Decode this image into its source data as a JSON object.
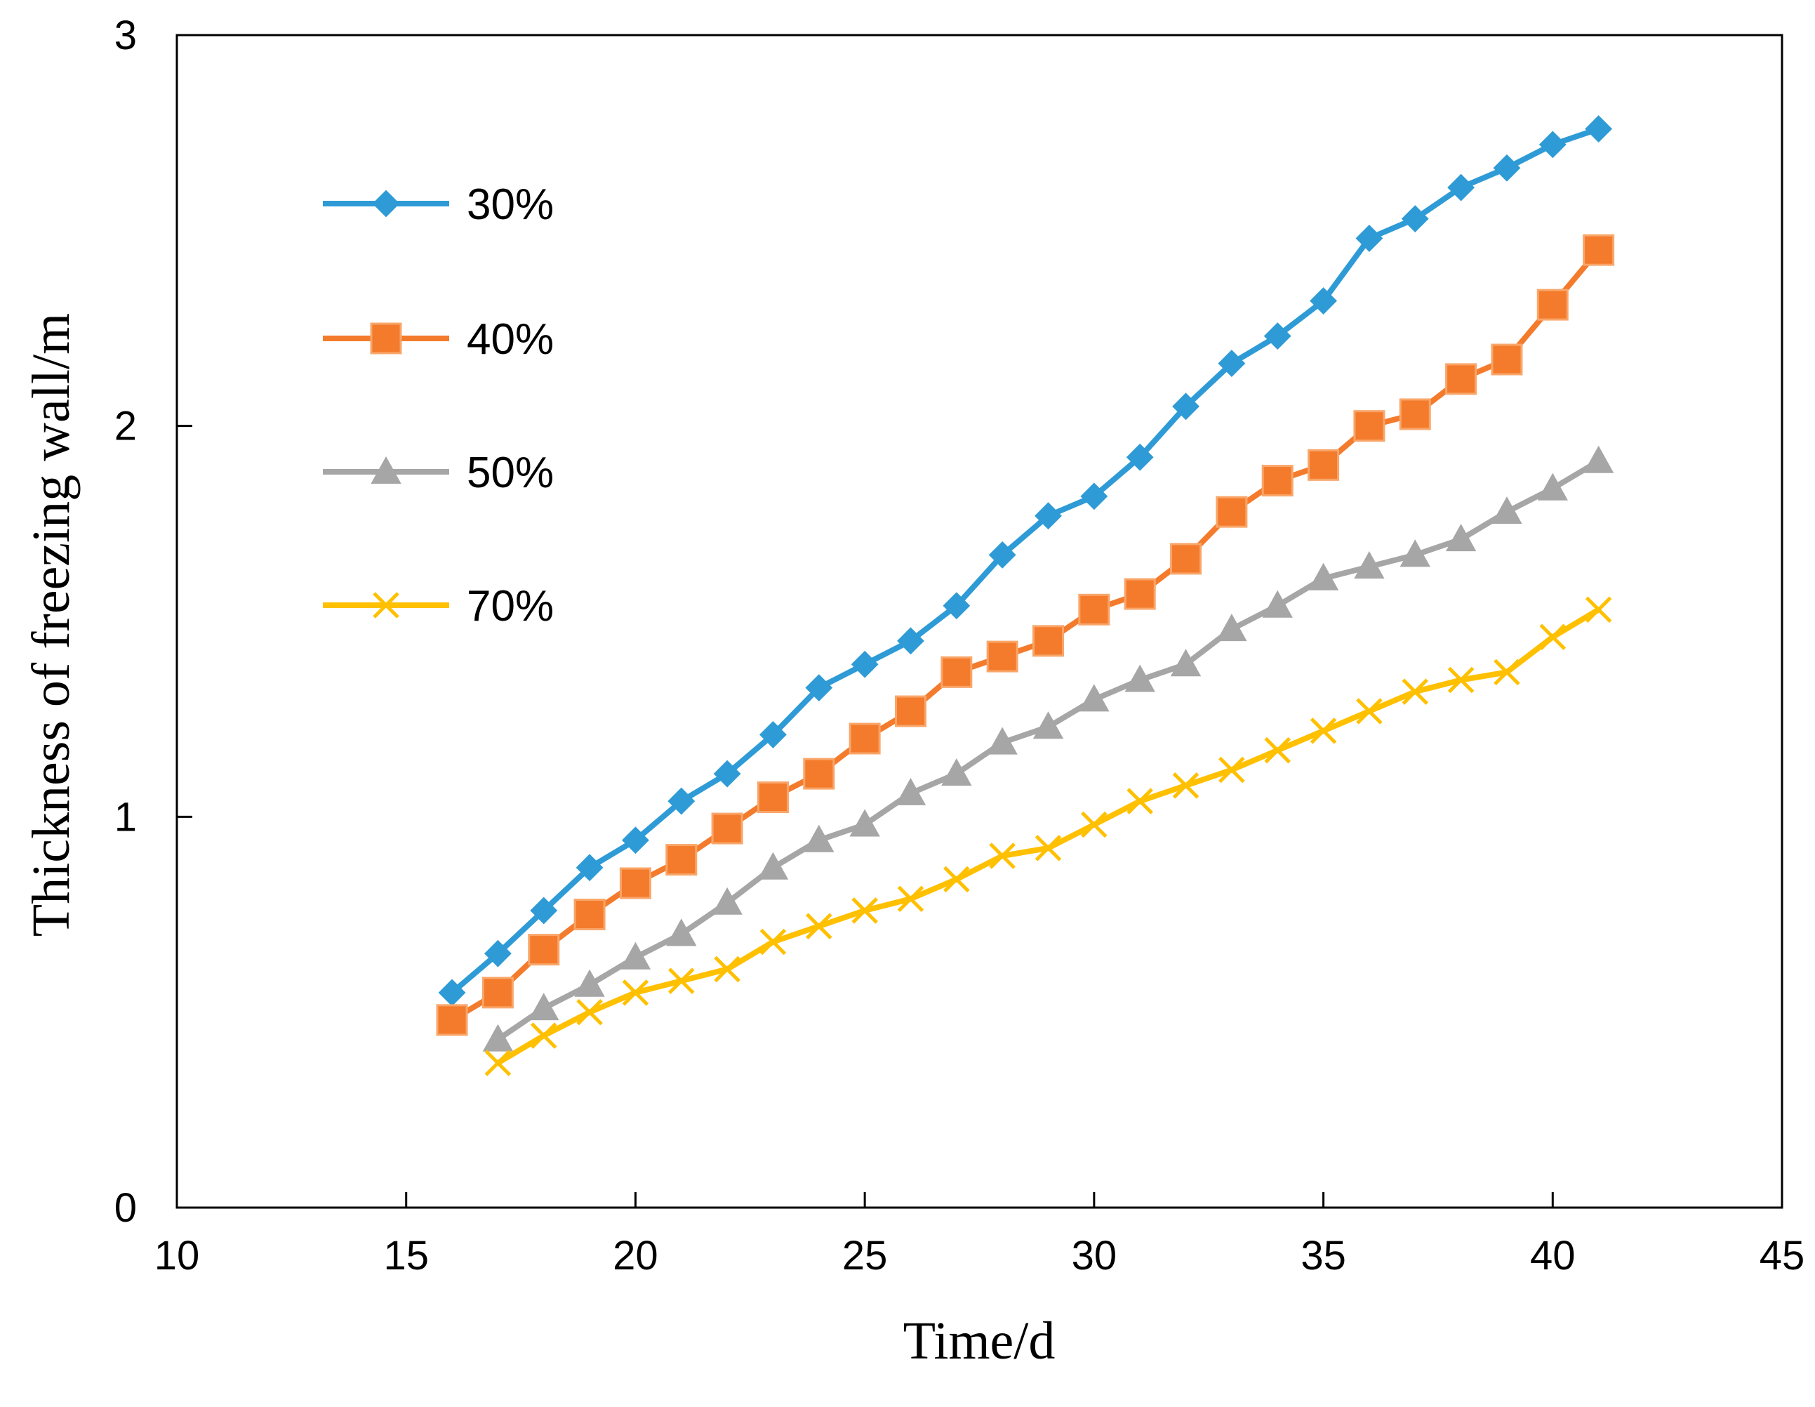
{
  "chart_data": {
    "type": "line",
    "title": "",
    "xlabel": "Time/d",
    "ylabel": "Thickness of freezing wall/m",
    "xlim": [
      10,
      45
    ],
    "ylim": [
      0,
      3
    ],
    "xticks": [
      10,
      15,
      20,
      25,
      30,
      35,
      40,
      45
    ],
    "yticks": [
      0,
      1,
      2,
      3
    ],
    "grid": false,
    "legend_position": "top-left",
    "series": [
      {
        "name": "30%",
        "color": "#2E9BD6",
        "marker": "diamond",
        "x": [
          16,
          17,
          18,
          19,
          20,
          21,
          22,
          23,
          24,
          25,
          26,
          27,
          28,
          29,
          30,
          31,
          32,
          33,
          34,
          35,
          36,
          37,
          38,
          39,
          40,
          41
        ],
        "values": [
          0.55,
          0.65,
          0.76,
          0.87,
          0.94,
          1.04,
          1.11,
          1.21,
          1.33,
          1.39,
          1.45,
          1.54,
          1.67,
          1.77,
          1.82,
          1.92,
          2.05,
          2.16,
          2.23,
          2.32,
          2.48,
          2.53,
          2.61,
          2.66,
          2.72,
          2.76
        ]
      },
      {
        "name": "40%",
        "color": "#F47B2C",
        "marker": "square",
        "x": [
          16,
          17,
          18,
          19,
          20,
          21,
          22,
          23,
          24,
          25,
          26,
          27,
          28,
          29,
          30,
          31,
          32,
          33,
          34,
          35,
          36,
          37,
          38,
          39,
          40,
          41
        ],
        "values": [
          0.48,
          0.55,
          0.66,
          0.75,
          0.83,
          0.89,
          0.97,
          1.05,
          1.11,
          1.2,
          1.27,
          1.37,
          1.41,
          1.45,
          1.53,
          1.57,
          1.66,
          1.78,
          1.86,
          1.9,
          2.0,
          2.03,
          2.12,
          2.17,
          2.31,
          2.45
        ]
      },
      {
        "name": "50%",
        "color": "#A6A6A6",
        "marker": "triangle",
        "x": [
          17,
          18,
          19,
          20,
          21,
          22,
          23,
          24,
          25,
          26,
          27,
          28,
          29,
          30,
          31,
          32,
          33,
          34,
          35,
          36,
          37,
          38,
          39,
          40,
          41
        ],
        "values": [
          0.43,
          0.51,
          0.57,
          0.64,
          0.7,
          0.78,
          0.87,
          0.94,
          0.98,
          1.06,
          1.11,
          1.19,
          1.23,
          1.3,
          1.35,
          1.39,
          1.48,
          1.54,
          1.61,
          1.64,
          1.67,
          1.71,
          1.78,
          1.84,
          1.91
        ]
      },
      {
        "name": "70%",
        "color": "#FFC000",
        "marker": "x",
        "x": [
          17,
          18,
          19,
          20,
          21,
          22,
          23,
          24,
          25,
          26,
          27,
          28,
          29,
          30,
          31,
          32,
          33,
          34,
          35,
          36,
          37,
          38,
          39,
          40,
          41
        ],
        "values": [
          0.37,
          0.44,
          0.5,
          0.55,
          0.58,
          0.61,
          0.68,
          0.72,
          0.76,
          0.79,
          0.84,
          0.9,
          0.92,
          0.98,
          1.04,
          1.08,
          1.12,
          1.17,
          1.22,
          1.27,
          1.32,
          1.35,
          1.37,
          1.46,
          1.53
        ]
      }
    ]
  }
}
